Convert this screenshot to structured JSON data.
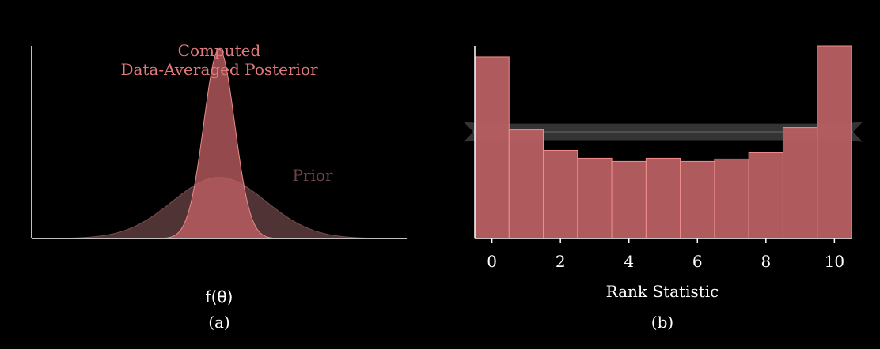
{
  "colors": {
    "background": "#000000",
    "axis": "#ffffff",
    "posterior_fill": "#c56365",
    "posterior_label": "#e07a7c",
    "prior_fill": "#5e3c3d",
    "prior_label": "#6a4546",
    "bar_fill": "#b65f62",
    "bar_edge": "#f08c8e",
    "band": "#3a3a3a"
  },
  "chart_data": [
    {
      "type": "area",
      "panel_label": "(a)",
      "xlabel": "f(θ)",
      "ylabel": "",
      "xlim": [
        -4,
        4
      ],
      "ylim": [
        0,
        1.2
      ],
      "series": [
        {
          "name": "Prior",
          "mean": 0,
          "sd": 1.0,
          "peak": 0.38
        },
        {
          "name": "Computed\nData-Averaged Posterior",
          "mean": 0,
          "sd": 0.33,
          "peak": 1.18
        }
      ],
      "annotations": [
        {
          "text_lines": [
            "Computed",
            "Data-Averaged Posterior"
          ],
          "series": "posterior"
        },
        {
          "text_lines": [
            "Prior"
          ],
          "series": "prior"
        }
      ]
    },
    {
      "type": "bar",
      "panel_label": "(b)",
      "xlabel": "Rank Statistic",
      "ylabel": "",
      "categories": [
        0,
        1,
        2,
        3,
        4,
        5,
        6,
        7,
        8,
        9,
        10
      ],
      "values": [
        231,
        138,
        112,
        102,
        98,
        102,
        98,
        101,
        109,
        141,
        245
      ],
      "xticks": [
        0,
        2,
        4,
        6,
        8,
        10
      ],
      "xlim": [
        -0.5,
        10.5
      ],
      "ylim": [
        0,
        245
      ],
      "band": {
        "low": 123,
        "high": 148,
        "mid": 135.5
      }
    }
  ]
}
